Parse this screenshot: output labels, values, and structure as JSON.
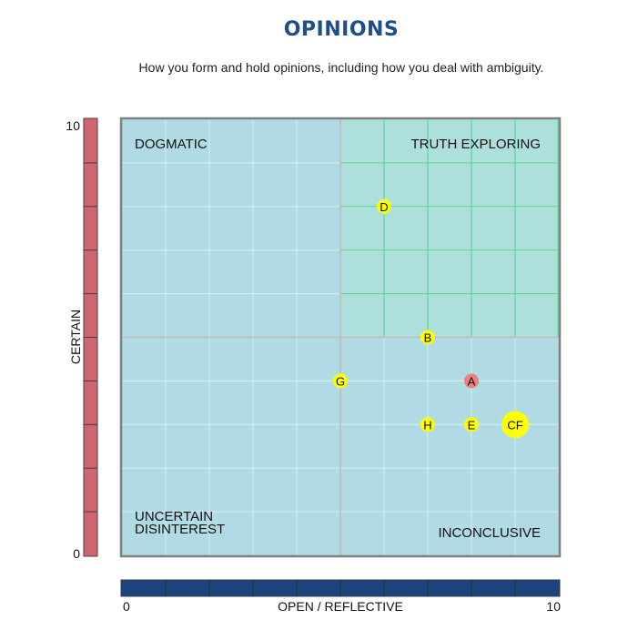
{
  "header": {
    "title": "OPINIONS",
    "subtitle": "How you form and hold opinions, including how you deal with ambiguity."
  },
  "chart_data": {
    "type": "scatter",
    "title": "OPINIONS",
    "subtitle": "How you form and hold opinions, including how you deal with ambiguity.",
    "xlabel": "OPEN / REFLECTIVE",
    "ylabel": "CERTAIN",
    "xlim": [
      0,
      10
    ],
    "ylim": [
      0,
      10
    ],
    "x_ticks": [
      "0",
      "10"
    ],
    "y_ticks": [
      "0",
      "10"
    ],
    "grid": true,
    "quadrants": [
      {
        "label": "DOGMATIC",
        "position": "top-left"
      },
      {
        "label": "TRUTH EXPLORING",
        "position": "top-right",
        "highlighted": true
      },
      {
        "label": "UNCERTAIN\nDISINTEREST",
        "lines": [
          "UNCERTAIN",
          "DISINTEREST"
        ],
        "position": "bottom-left"
      },
      {
        "label": "INCONCLUSIVE",
        "position": "bottom-right"
      }
    ],
    "points": [
      {
        "label": "D",
        "x": 6,
        "y": 8,
        "color": "#ffff00",
        "size": "small"
      },
      {
        "label": "B",
        "x": 7,
        "y": 5,
        "color": "#ffff00",
        "size": "small"
      },
      {
        "label": "G",
        "x": 5,
        "y": 4,
        "color": "#ffff00",
        "size": "small"
      },
      {
        "label": "A",
        "x": 8,
        "y": 4,
        "color": "#f08080",
        "size": "small"
      },
      {
        "label": "H",
        "x": 7,
        "y": 3,
        "color": "#ffff00",
        "size": "small"
      },
      {
        "label": "E",
        "x": 8,
        "y": 3,
        "color": "#ffff00",
        "size": "small"
      },
      {
        "label": "CF",
        "x": 9,
        "y": 3,
        "color": "#ffff00",
        "size": "large"
      }
    ],
    "colors": {
      "plot_bg": "#b0dbe4",
      "highlight_bg": "#ade0dc",
      "highlight_grid": "#4cd98c",
      "y_axis_bar": "#cd6670",
      "x_axis_bar": "#1c437c",
      "border": "#808080"
    }
  }
}
